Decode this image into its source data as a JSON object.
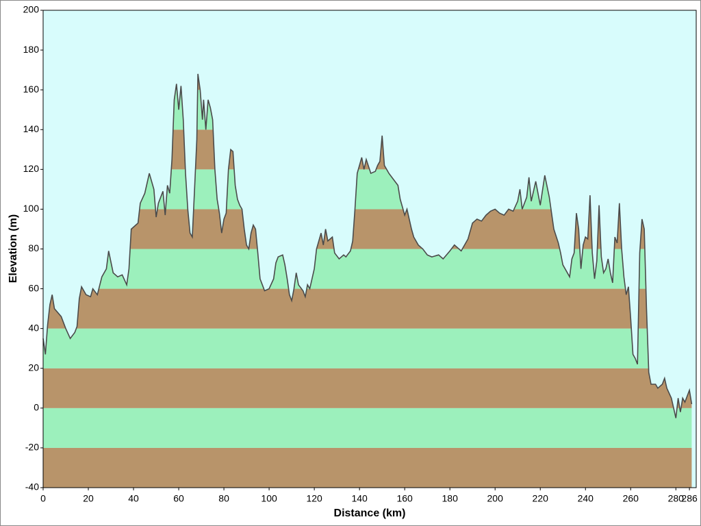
{
  "chart_data": {
    "type": "area",
    "xlabel": "Distance   (km)",
    "ylabel": "Elevation (m)",
    "x": [
      0,
      1,
      2,
      3,
      4,
      5,
      8,
      10,
      12,
      14,
      15,
      16,
      17,
      19,
      21,
      22,
      24,
      26,
      28,
      29,
      31,
      33,
      35,
      37,
      38,
      39,
      42,
      43,
      45,
      47,
      49,
      50,
      51,
      53,
      54,
      55,
      56,
      57,
      58,
      59,
      60,
      61,
      62,
      63,
      64,
      65,
      66,
      67,
      68,
      68.5,
      69.5,
      70.5,
      71,
      72,
      73,
      74,
      75,
      76,
      77,
      78,
      79,
      80,
      81,
      82,
      83,
      84,
      85,
      86,
      87,
      88,
      89,
      90,
      91,
      92,
      93,
      94,
      95,
      96,
      97,
      98,
      100,
      102,
      103,
      104,
      106,
      107,
      108,
      109,
      110,
      111,
      112,
      113,
      115,
      116,
      117,
      118,
      120,
      121,
      123,
      124,
      125,
      126,
      128,
      129,
      131,
      133,
      134,
      136,
      137,
      138,
      139,
      140,
      141,
      142,
      143,
      145,
      147,
      148,
      149,
      150,
      151,
      152,
      153,
      155,
      157,
      158,
      160,
      161,
      162,
      163,
      164,
      166,
      168,
      170,
      172,
      175,
      177,
      180,
      182,
      185,
      188,
      190,
      192,
      194,
      196,
      198,
      200,
      202,
      204,
      206,
      208,
      210,
      211,
      212,
      214,
      215,
      216,
      218,
      220,
      222,
      224,
      226,
      228,
      229,
      230,
      232,
      233,
      234,
      235,
      236,
      237,
      238,
      239,
      240,
      241,
      242,
      243,
      244,
      245,
      246,
      247,
      248,
      249,
      250,
      251,
      252,
      253,
      254,
      255,
      256,
      257,
      258,
      259,
      260,
      261,
      262,
      263,
      264,
      265,
      266,
      267,
      268,
      269,
      271,
      272,
      274,
      275,
      276,
      278,
      279,
      280,
      281,
      282,
      283,
      284,
      285,
      286,
      287
    ],
    "values": [
      35,
      27,
      42,
      52,
      57,
      50,
      46,
      40,
      35,
      38,
      41,
      55,
      61,
      57,
      56,
      60,
      57,
      66,
      70,
      79,
      68,
      66,
      67,
      62,
      70,
      90,
      93,
      103,
      108,
      118,
      110,
      96,
      103,
      109,
      97,
      112,
      108,
      125,
      155,
      163,
      150,
      162,
      145,
      118,
      100,
      88,
      86,
      110,
      135,
      168,
      160,
      145,
      155,
      140,
      155,
      151,
      145,
      120,
      105,
      98,
      88,
      95,
      98,
      120,
      130,
      129,
      112,
      105,
      102,
      100,
      90,
      82,
      80,
      88,
      92,
      90,
      78,
      65,
      62,
      59,
      60,
      65,
      73,
      76,
      77,
      72,
      65,
      57,
      54,
      60,
      68,
      62,
      59,
      56,
      62,
      60,
      70,
      80,
      88,
      82,
      90,
      84,
      86,
      78,
      75,
      77,
      76,
      79,
      84,
      100,
      118,
      122,
      126,
      120,
      125,
      118,
      119,
      122,
      124,
      137,
      122,
      120,
      118,
      115,
      112,
      105,
      97,
      100,
      95,
      90,
      86,
      82,
      80,
      77,
      76,
      77,
      75,
      79,
      82,
      79,
      85,
      93,
      95,
      94,
      97,
      99,
      100,
      98,
      97,
      100,
      99,
      104,
      110,
      100,
      106,
      116,
      104,
      114,
      102,
      117,
      106,
      90,
      83,
      78,
      72,
      68,
      66,
      75,
      78,
      98,
      90,
      70,
      82,
      86,
      85,
      107,
      78,
      65,
      74,
      102,
      76,
      68,
      70,
      75,
      68,
      63,
      86,
      83,
      103,
      80,
      66,
      57,
      61,
      45,
      27,
      25,
      22,
      78,
      95,
      90,
      50,
      18,
      12,
      12,
      10,
      12,
      15,
      10,
      5,
      0,
      -5,
      5,
      -2,
      5,
      3,
      6,
      9,
      2
    ],
    "xlim": [
      0,
      289
    ],
    "xticks": [
      0,
      20,
      40,
      60,
      80,
      100,
      120,
      140,
      160,
      180,
      200,
      220,
      240,
      260,
      280,
      286
    ],
    "ylim": [
      -40,
      200
    ],
    "yticks": [
      -40,
      -20,
      0,
      20,
      40,
      60,
      80,
      100,
      120,
      140,
      160,
      180,
      200
    ],
    "line_color": "#4a4a4a",
    "fill_colors": [
      "#b8946a",
      "#9cf0bc"
    ],
    "background": "#d8fcfc"
  }
}
